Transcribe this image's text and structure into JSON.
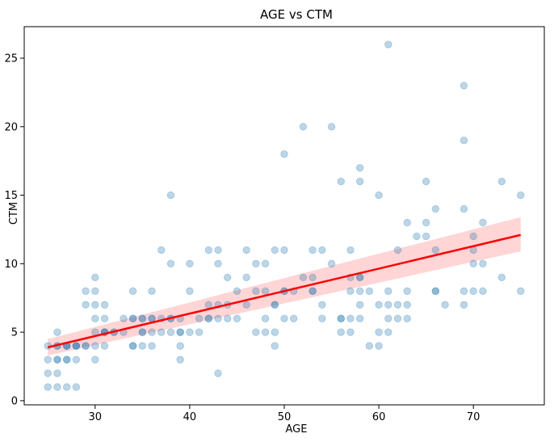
{
  "chart_data": {
    "type": "scatter",
    "title": "AGE vs CTM",
    "xlabel": "AGE",
    "ylabel": "CTM",
    "xlim": [
      22.5,
      77.5
    ],
    "ylim": [
      -0.3,
      27.3
    ],
    "xticks": [
      "30",
      "40",
      "50",
      "60",
      "70"
    ],
    "yticks": [
      "0",
      "5",
      "10",
      "15",
      "20",
      "25"
    ],
    "grid": false,
    "legend": "none",
    "colors": {
      "points": "#1f77b4",
      "trend": "#ff0000",
      "band": "#ffb3b3"
    },
    "series": [
      {
        "kind": "points",
        "x": [
          25,
          25,
          25,
          25,
          26,
          26,
          26,
          26,
          26,
          26,
          26,
          27,
          27,
          27,
          27,
          27,
          27,
          28,
          28,
          28,
          28,
          28,
          29,
          29,
          29,
          29,
          30,
          30,
          30,
          30,
          30,
          30,
          30,
          31,
          31,
          31,
          31,
          31,
          31,
          32,
          32,
          33,
          33,
          34,
          34,
          34,
          34,
          34,
          35,
          35,
          35,
          35,
          35,
          36,
          36,
          36,
          36,
          36,
          37,
          37,
          37,
          38,
          38,
          38,
          38,
          38,
          39,
          39,
          39,
          39,
          39,
          40,
          40,
          40,
          41,
          41,
          42,
          42,
          42,
          42,
          43,
          43,
          43,
          43,
          43,
          44,
          44,
          44,
          45,
          45,
          46,
          46,
          46,
          47,
          47,
          47,
          48,
          48,
          48,
          48,
          49,
          49,
          49,
          49,
          49,
          50,
          50,
          50,
          50,
          50,
          51,
          51,
          52,
          52,
          53,
          53,
          53,
          53,
          54,
          54,
          54,
          55,
          55,
          56,
          56,
          56,
          56,
          57,
          57,
          57,
          57,
          57,
          58,
          58,
          58,
          58,
          58,
          58,
          58,
          59,
          59,
          60,
          60,
          60,
          60,
          61,
          61,
          61,
          61,
          61,
          62,
          62,
          62,
          63,
          63,
          63,
          63,
          64,
          65,
          65,
          65,
          66,
          66,
          66,
          66,
          67,
          69,
          69,
          69,
          69,
          69,
          70,
          70,
          70,
          70,
          71,
          71,
          71,
          73,
          73,
          75,
          75
        ],
        "y": [
          1,
          2,
          3,
          4,
          1,
          2,
          3,
          4,
          5,
          3,
          4,
          1,
          3,
          4,
          4,
          3,
          4,
          1,
          3,
          4,
          4,
          4,
          8,
          7,
          4,
          4,
          9,
          8,
          7,
          6,
          5,
          4,
          3,
          7,
          6,
          5,
          4,
          5,
          5,
          5,
          5,
          6,
          5,
          8,
          6,
          6,
          4,
          4,
          6,
          5,
          4,
          6,
          5,
          8,
          6,
          5,
          4,
          6,
          11,
          6,
          5,
          15,
          10,
          6,
          5,
          6,
          6,
          5,
          4,
          3,
          5,
          10,
          8,
          5,
          6,
          5,
          11,
          7,
          6,
          6,
          11,
          10,
          7,
          6,
          2,
          9,
          7,
          6,
          8,
          6,
          11,
          9,
          7,
          10,
          8,
          5,
          10,
          8,
          6,
          5,
          11,
          7,
          5,
          4,
          7,
          18,
          11,
          8,
          8,
          6,
          8,
          6,
          20,
          9,
          11,
          9,
          8,
          8,
          11,
          7,
          6,
          20,
          10,
          16,
          6,
          6,
          5,
          11,
          9,
          8,
          6,
          5,
          17,
          16,
          9,
          9,
          8,
          7,
          6,
          8,
          4,
          15,
          7,
          5,
          4,
          26,
          8,
          7,
          6,
          5,
          11,
          7,
          6,
          13,
          8,
          7,
          6,
          12,
          16,
          13,
          12,
          14,
          11,
          8,
          8,
          7,
          23,
          19,
          14,
          8,
          7,
          12,
          11,
          10,
          8,
          13,
          10,
          8,
          16,
          9,
          15,
          8
        ]
      },
      {
        "kind": "trend",
        "name": "",
        "x": [
          25,
          75
        ],
        "y": [
          3.9,
          12.1
        ],
        "ci_lower": [
          3.3,
          10.9
        ],
        "ci_upper": [
          4.5,
          13.4
        ]
      }
    ]
  }
}
